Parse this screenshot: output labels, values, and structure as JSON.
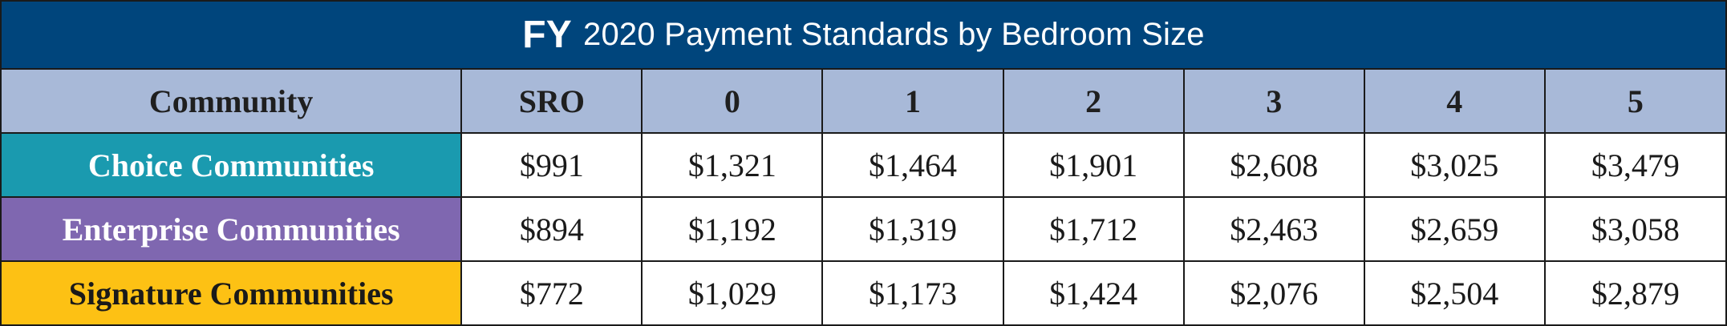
{
  "title": {
    "fy": "FY",
    "rest": "2020 Payment Standards by Bedroom Size"
  },
  "columns": [
    "Community",
    "SRO",
    "0",
    "1",
    "2",
    "3",
    "4",
    "5"
  ],
  "rows": [
    {
      "name": "Choice Communities",
      "color": "#1a9aaf",
      "text_color": "#ffffff",
      "values": [
        "$991",
        "$1,321",
        "$1,464",
        "$1,901",
        "$2,608",
        "$3,025",
        "$3,479"
      ]
    },
    {
      "name": "Enterprise Communities",
      "color": "#7f67b0",
      "text_color": "#ffffff",
      "values": [
        "$894",
        "$1,192",
        "$1,319",
        "$1,712",
        "$2,463",
        "$2,659",
        "$3,058"
      ]
    },
    {
      "name": "Signature Communities",
      "color": "#fdc114",
      "text_color": "#1a1a1a",
      "values": [
        "$772",
        "$1,029",
        "$1,173",
        "$1,424",
        "$2,076",
        "$2,504",
        "$2,879"
      ]
    }
  ],
  "colors": {
    "title_background": "#00457c",
    "header_background": "#a8b9d8"
  }
}
